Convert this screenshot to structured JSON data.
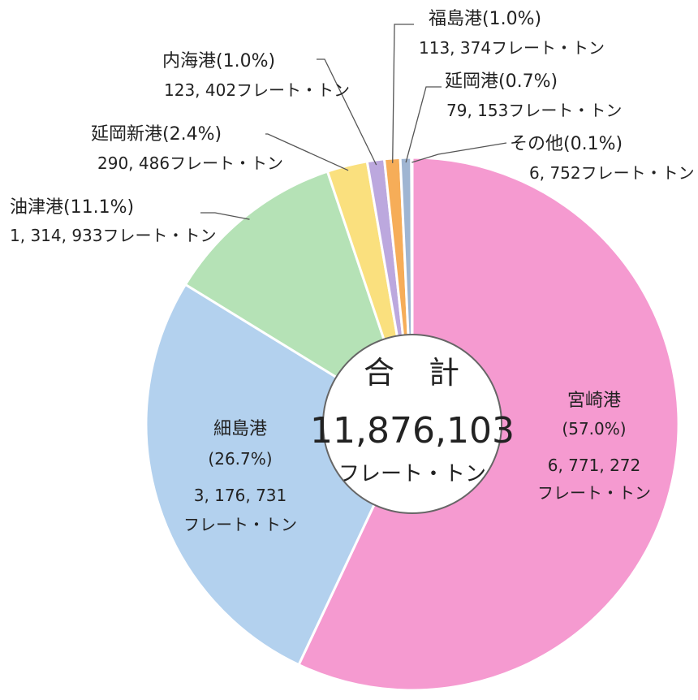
{
  "chart_data": {
    "type": "pie",
    "style": "donut",
    "center": {
      "title": "合　計",
      "total": "11,876,103",
      "unit": "フレート・トン"
    },
    "slices": [
      {
        "name": "宮崎港",
        "percent_label": "(57.0%)",
        "percent": 57.0,
        "value": 6771272,
        "value_label": "6, 771, 272",
        "unit": "フレート・トン",
        "color": "#f59ad0"
      },
      {
        "name": "細島港",
        "percent_label": "(26.7%)",
        "percent": 26.7,
        "value": 3176731,
        "value_label": "3, 176, 731",
        "unit": "フレート・トン",
        "color": "#b3d1ee"
      },
      {
        "name": "油津港",
        "percent_label": "(11.1%)",
        "percent": 11.1,
        "value": 1314933,
        "value_label": "1, 314, 933フレート・トン",
        "color": "#b5e2b6"
      },
      {
        "name": "延岡新港",
        "percent_label": "(2.4%)",
        "percent": 2.4,
        "value": 290486,
        "value_label": "290, 486フレート・トン",
        "color": "#fae07e"
      },
      {
        "name": "内海港",
        "percent_label": "(1.0%)",
        "percent": 1.0,
        "value": 123402,
        "value_label": "123, 402フレート・トン",
        "color": "#bca8de"
      },
      {
        "name": "福島港",
        "percent_label": "(1.0%)",
        "percent": 1.0,
        "value": 113374,
        "value_label": "113, 374フレート・トン",
        "color": "#f6ad58"
      },
      {
        "name": "延岡港",
        "percent_label": "(0.7%)",
        "percent": 0.7,
        "value": 79153,
        "value_label": "79, 153フレート・トン",
        "color": "#9fb5d2"
      },
      {
        "name": "その他",
        "percent_label": "(0.1%)",
        "percent": 0.1,
        "value": 6752,
        "value_label": "6, 752フレート・トン",
        "color": "#9e9e9e"
      }
    ]
  }
}
